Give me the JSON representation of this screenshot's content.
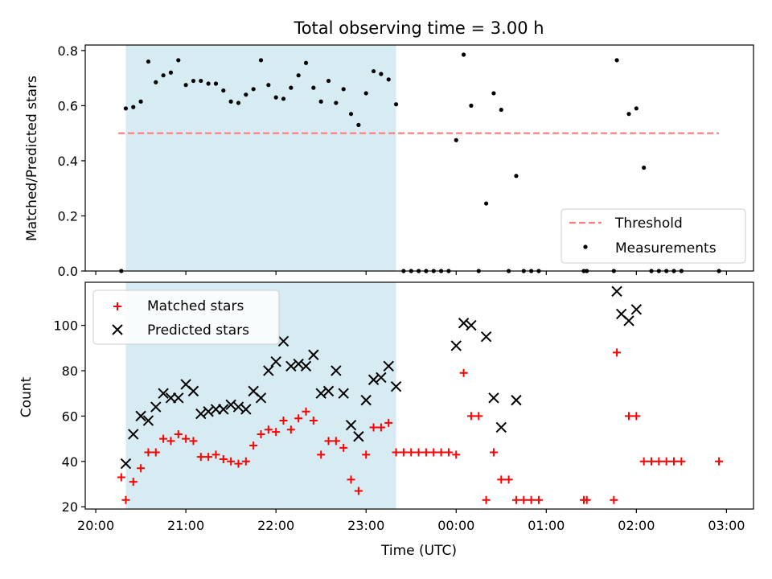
{
  "colors": {
    "shade": "#add8e6",
    "threshold": "#ff7f7f",
    "measure": "#000000",
    "matched": "#ff0000",
    "predicted": "#000000"
  },
  "chart_data": [
    {
      "type": "scatter",
      "title": "Total observing time = 3.00 h",
      "xlabel": "",
      "ylabel": "Matched/Predicted stars",
      "ylim": [
        0,
        0.82
      ],
      "yticks": [
        0.0,
        0.2,
        0.4,
        0.6,
        0.8
      ],
      "ytick_labels": [
        "0.0",
        "0.2",
        "0.4",
        "0.6",
        "0.8"
      ],
      "xlim": [
        "20:00",
        "03:00"
      ],
      "shaded_range": [
        "20:20",
        "23:20"
      ],
      "threshold": {
        "name": "Threshold",
        "value": 0.5,
        "x": [
          "20:15",
          "02:55"
        ]
      },
      "legend": {
        "placement": "lower right",
        "entries": [
          "Threshold",
          "Measurements"
        ]
      },
      "series": [
        {
          "name": "Measurements",
          "points": [
            [
              "20:17",
              0.0
            ],
            [
              "20:20",
              0.59
            ],
            [
              "20:25",
              0.595
            ],
            [
              "20:30",
              0.615
            ],
            [
              "20:35",
              0.76
            ],
            [
              "20:40",
              0.685
            ],
            [
              "20:45",
              0.71
            ],
            [
              "20:50",
              0.72
            ],
            [
              "20:55",
              0.765
            ],
            [
              "21:00",
              0.675
            ],
            [
              "21:05",
              0.69
            ],
            [
              "21:10",
              0.69
            ],
            [
              "21:15",
              0.68
            ],
            [
              "21:20",
              0.68
            ],
            [
              "21:25",
              0.655
            ],
            [
              "21:30",
              0.615
            ],
            [
              "21:35",
              0.61
            ],
            [
              "21:40",
              0.64
            ],
            [
              "21:45",
              0.66
            ],
            [
              "21:50",
              0.765
            ],
            [
              "21:55",
              0.675
            ],
            [
              "22:00",
              0.63
            ],
            [
              "22:05",
              0.625
            ],
            [
              "22:10",
              0.665
            ],
            [
              "22:15",
              0.71
            ],
            [
              "22:20",
              0.755
            ],
            [
              "22:25",
              0.665
            ],
            [
              "22:30",
              0.615
            ],
            [
              "22:35",
              0.69
            ],
            [
              "22:40",
              0.61
            ],
            [
              "22:45",
              0.66
            ],
            [
              "22:50",
              0.57
            ],
            [
              "22:55",
              0.53
            ],
            [
              "23:00",
              0.645
            ],
            [
              "23:05",
              0.725
            ],
            [
              "23:10",
              0.715
            ],
            [
              "23:15",
              0.695
            ],
            [
              "23:20",
              0.605
            ],
            [
              "23:25",
              0.0
            ],
            [
              "23:30",
              0.0
            ],
            [
              "23:35",
              0.0
            ],
            [
              "23:40",
              0.0
            ],
            [
              "23:45",
              0.0
            ],
            [
              "23:50",
              0.0
            ],
            [
              "23:55",
              0.0
            ],
            [
              "00:00",
              0.475
            ],
            [
              "00:05",
              0.785
            ],
            [
              "00:10",
              0.6
            ],
            [
              "00:15",
              0.0
            ],
            [
              "00:20",
              0.245
            ],
            [
              "00:25",
              0.645
            ],
            [
              "00:30",
              0.585
            ],
            [
              "00:35",
              0.0
            ],
            [
              "00:40",
              0.345
            ],
            [
              "00:45",
              0.0
            ],
            [
              "00:50",
              0.0
            ],
            [
              "00:55",
              0.0
            ],
            [
              "01:25",
              0.0
            ],
            [
              "01:27",
              0.0
            ],
            [
              "01:45",
              0.0
            ],
            [
              "01:47",
              0.765
            ],
            [
              "01:55",
              0.57
            ],
            [
              "02:00",
              0.59
            ],
            [
              "02:05",
              0.375
            ],
            [
              "02:10",
              0.0
            ],
            [
              "02:15",
              0.0
            ],
            [
              "02:20",
              0.0
            ],
            [
              "02:25",
              0.0
            ],
            [
              "02:30",
              0.0
            ],
            [
              "02:55",
              0.0
            ]
          ]
        }
      ]
    },
    {
      "type": "scatter",
      "xlabel": "Time (UTC)",
      "ylabel": "Count",
      "ylim": [
        19,
        119
      ],
      "yticks": [
        20,
        40,
        60,
        80,
        100
      ],
      "ytick_labels": [
        "20",
        "40",
        "60",
        "80",
        "100"
      ],
      "xlim": [
        "20:00",
        "03:00"
      ],
      "xticks": [
        "20:00",
        "21:00",
        "22:00",
        "23:00",
        "00:00",
        "01:00",
        "02:00",
        "03:00"
      ],
      "shaded_range": [
        "20:20",
        "23:20"
      ],
      "legend": {
        "placement": "upper left",
        "entries": [
          "Matched stars",
          "Predicted stars"
        ]
      },
      "series": [
        {
          "name": "Matched stars",
          "marker": "+",
          "points": [
            [
              "20:17",
              33
            ],
            [
              "20:20",
              23
            ],
            [
              "20:25",
              31
            ],
            [
              "20:30",
              37
            ],
            [
              "20:35",
              44
            ],
            [
              "20:40",
              44
            ],
            [
              "20:45",
              50
            ],
            [
              "20:50",
              49
            ],
            [
              "20:55",
              52
            ],
            [
              "21:00",
              50
            ],
            [
              "21:05",
              49
            ],
            [
              "21:10",
              42
            ],
            [
              "21:15",
              42
            ],
            [
              "21:20",
              43
            ],
            [
              "21:25",
              41
            ],
            [
              "21:30",
              40
            ],
            [
              "21:35",
              39
            ],
            [
              "21:40",
              40
            ],
            [
              "21:45",
              47
            ],
            [
              "21:50",
              52
            ],
            [
              "21:55",
              54
            ],
            [
              "22:00",
              53
            ],
            [
              "22:05",
              58
            ],
            [
              "22:10",
              54
            ],
            [
              "22:15",
              59
            ],
            [
              "22:20",
              62
            ],
            [
              "22:25",
              58
            ],
            [
              "22:30",
              43
            ],
            [
              "22:35",
              49
            ],
            [
              "22:40",
              49
            ],
            [
              "22:45",
              46
            ],
            [
              "22:50",
              32
            ],
            [
              "22:55",
              27
            ],
            [
              "23:00",
              43
            ],
            [
              "23:05",
              55
            ],
            [
              "23:10",
              55
            ],
            [
              "23:15",
              57
            ],
            [
              "23:20",
              44
            ],
            [
              "23:25",
              44
            ],
            [
              "23:30",
              44
            ],
            [
              "23:35",
              44
            ],
            [
              "23:40",
              44
            ],
            [
              "23:45",
              44
            ],
            [
              "23:50",
              44
            ],
            [
              "23:55",
              44
            ],
            [
              "00:00",
              43
            ],
            [
              "00:05",
              79
            ],
            [
              "00:10",
              60
            ],
            [
              "00:15",
              60
            ],
            [
              "00:20",
              23
            ],
            [
              "00:25",
              44
            ],
            [
              "00:30",
              32
            ],
            [
              "00:35",
              32
            ],
            [
              "00:40",
              23
            ],
            [
              "00:45",
              23
            ],
            [
              "00:50",
              23
            ],
            [
              "00:55",
              23
            ],
            [
              "01:25",
              23
            ],
            [
              "01:27",
              23
            ],
            [
              "01:45",
              23
            ],
            [
              "01:47",
              88
            ],
            [
              "01:55",
              60
            ],
            [
              "02:00",
              60
            ],
            [
              "02:05",
              40
            ],
            [
              "02:10",
              40
            ],
            [
              "02:15",
              40
            ],
            [
              "02:20",
              40
            ],
            [
              "02:25",
              40
            ],
            [
              "02:30",
              40
            ],
            [
              "02:55",
              40
            ]
          ]
        },
        {
          "name": "Predicted stars",
          "marker": "x",
          "points": [
            [
              "20:20",
              39
            ],
            [
              "20:25",
              52
            ],
            [
              "20:30",
              60
            ],
            [
              "20:35",
              58
            ],
            [
              "20:40",
              64
            ],
            [
              "20:45",
              70
            ],
            [
              "20:50",
              68
            ],
            [
              "20:55",
              68
            ],
            [
              "21:00",
              74
            ],
            [
              "21:05",
              71
            ],
            [
              "21:10",
              61
            ],
            [
              "21:15",
              62
            ],
            [
              "21:20",
              63
            ],
            [
              "21:25",
              63
            ],
            [
              "21:30",
              65
            ],
            [
              "21:35",
              64
            ],
            [
              "21:40",
              63
            ],
            [
              "21:45",
              71
            ],
            [
              "21:50",
              68
            ],
            [
              "21:55",
              80
            ],
            [
              "22:00",
              84
            ],
            [
              "22:05",
              93
            ],
            [
              "22:10",
              82
            ],
            [
              "22:15",
              83
            ],
            [
              "22:20",
              82
            ],
            [
              "22:25",
              87
            ],
            [
              "22:30",
              70
            ],
            [
              "22:35",
              71
            ],
            [
              "22:40",
              80
            ],
            [
              "22:45",
              70
            ],
            [
              "22:50",
              56
            ],
            [
              "22:55",
              51
            ],
            [
              "23:00",
              67
            ],
            [
              "23:05",
              76
            ],
            [
              "23:10",
              77
            ],
            [
              "23:15",
              82
            ],
            [
              "23:20",
              73
            ],
            [
              "00:00",
              91
            ],
            [
              "00:05",
              101
            ],
            [
              "00:10",
              100
            ],
            [
              "00:20",
              95
            ],
            [
              "00:25",
              68
            ],
            [
              "00:30",
              55
            ],
            [
              "00:40",
              67
            ],
            [
              "01:47",
              115
            ],
            [
              "01:50",
              105
            ],
            [
              "01:55",
              102
            ],
            [
              "02:00",
              107
            ]
          ]
        }
      ]
    }
  ]
}
